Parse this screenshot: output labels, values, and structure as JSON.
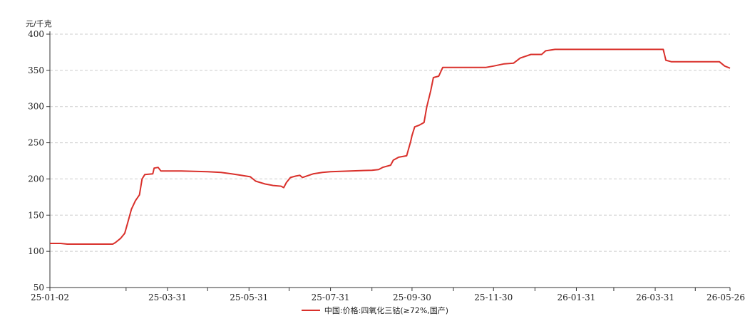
{
  "chart_data": {
    "type": "line",
    "title": "",
    "xlabel": "",
    "ylabel": "元/千克",
    "ylim": [
      50,
      400
    ],
    "yticks": [
      50,
      100,
      150,
      200,
      250,
      300,
      350,
      400
    ],
    "xtick_labels": [
      "25-01-02",
      "25-03-31",
      "25-05-31",
      "25-07-31",
      "25-09-30",
      "25-11-30",
      "26-01-31",
      "26-03-31",
      "26-05-26"
    ],
    "grid": "horizontal dashed",
    "legend_position": "bottom-center",
    "series": [
      {
        "name": "中国:价格:四氧化三钴(≥72%,国产)",
        "color": "#d9302b",
        "points": [
          [
            "25-01-02",
            111
          ],
          [
            "25-01-10",
            111
          ],
          [
            "25-01-15",
            110
          ],
          [
            "25-02-05",
            110
          ],
          [
            "25-02-18",
            110
          ],
          [
            "25-02-20",
            112
          ],
          [
            "25-02-24",
            118
          ],
          [
            "25-02-27",
            125
          ],
          [
            "25-03-01",
            138
          ],
          [
            "25-03-04",
            158
          ],
          [
            "25-03-07",
            170
          ],
          [
            "25-03-10",
            178
          ],
          [
            "25-03-12",
            200
          ],
          [
            "25-03-14",
            206
          ],
          [
            "25-03-20",
            207
          ],
          [
            "25-03-21",
            215
          ],
          [
            "25-03-24",
            216
          ],
          [
            "25-03-26",
            211
          ],
          [
            "25-03-31",
            211
          ],
          [
            "25-04-10",
            211
          ],
          [
            "25-04-30",
            210
          ],
          [
            "25-05-10",
            209
          ],
          [
            "25-05-18",
            207
          ],
          [
            "25-05-25",
            205
          ],
          [
            "25-06-01",
            203
          ],
          [
            "25-06-05",
            197
          ],
          [
            "25-06-12",
            193
          ],
          [
            "25-06-18",
            191
          ],
          [
            "25-06-24",
            190
          ],
          [
            "25-06-26",
            188
          ],
          [
            "25-06-28",
            195
          ],
          [
            "25-07-01",
            202
          ],
          [
            "25-07-05",
            204
          ],
          [
            "25-07-08",
            205
          ],
          [
            "25-07-10",
            202
          ],
          [
            "25-07-13",
            204
          ],
          [
            "25-07-18",
            207
          ],
          [
            "25-07-25",
            209
          ],
          [
            "25-07-31",
            210
          ],
          [
            "25-08-15",
            211
          ],
          [
            "25-08-31",
            212
          ],
          [
            "25-09-05",
            213
          ],
          [
            "25-09-08",
            216
          ],
          [
            "25-09-14",
            219
          ],
          [
            "25-09-16",
            226
          ],
          [
            "25-09-20",
            230
          ],
          [
            "25-09-26",
            232
          ],
          [
            "25-09-29",
            252
          ],
          [
            "25-09-30",
            260
          ],
          [
            "25-10-02",
            272
          ],
          [
            "25-10-05",
            274
          ],
          [
            "25-10-09",
            278
          ],
          [
            "25-10-11",
            299
          ],
          [
            "25-10-14",
            322
          ],
          [
            "25-10-16",
            340
          ],
          [
            "25-10-20",
            342
          ],
          [
            "25-10-23",
            354
          ],
          [
            "25-11-10",
            354
          ],
          [
            "25-11-24",
            354
          ],
          [
            "25-11-30",
            356
          ],
          [
            "25-12-08",
            359
          ],
          [
            "25-12-15",
            360
          ],
          [
            "25-12-20",
            367
          ],
          [
            "25-12-28",
            372
          ],
          [
            "26-01-05",
            372
          ],
          [
            "26-01-08",
            377
          ],
          [
            "26-01-15",
            379
          ],
          [
            "26-02-15",
            379
          ],
          [
            "26-03-31",
            379
          ],
          [
            "26-04-06",
            379
          ],
          [
            "26-04-08",
            364
          ],
          [
            "26-04-12",
            362
          ],
          [
            "26-05-01",
            362
          ],
          [
            "26-05-18",
            362
          ],
          [
            "26-05-22",
            356
          ],
          [
            "26-05-26",
            353
          ]
        ]
      }
    ]
  }
}
